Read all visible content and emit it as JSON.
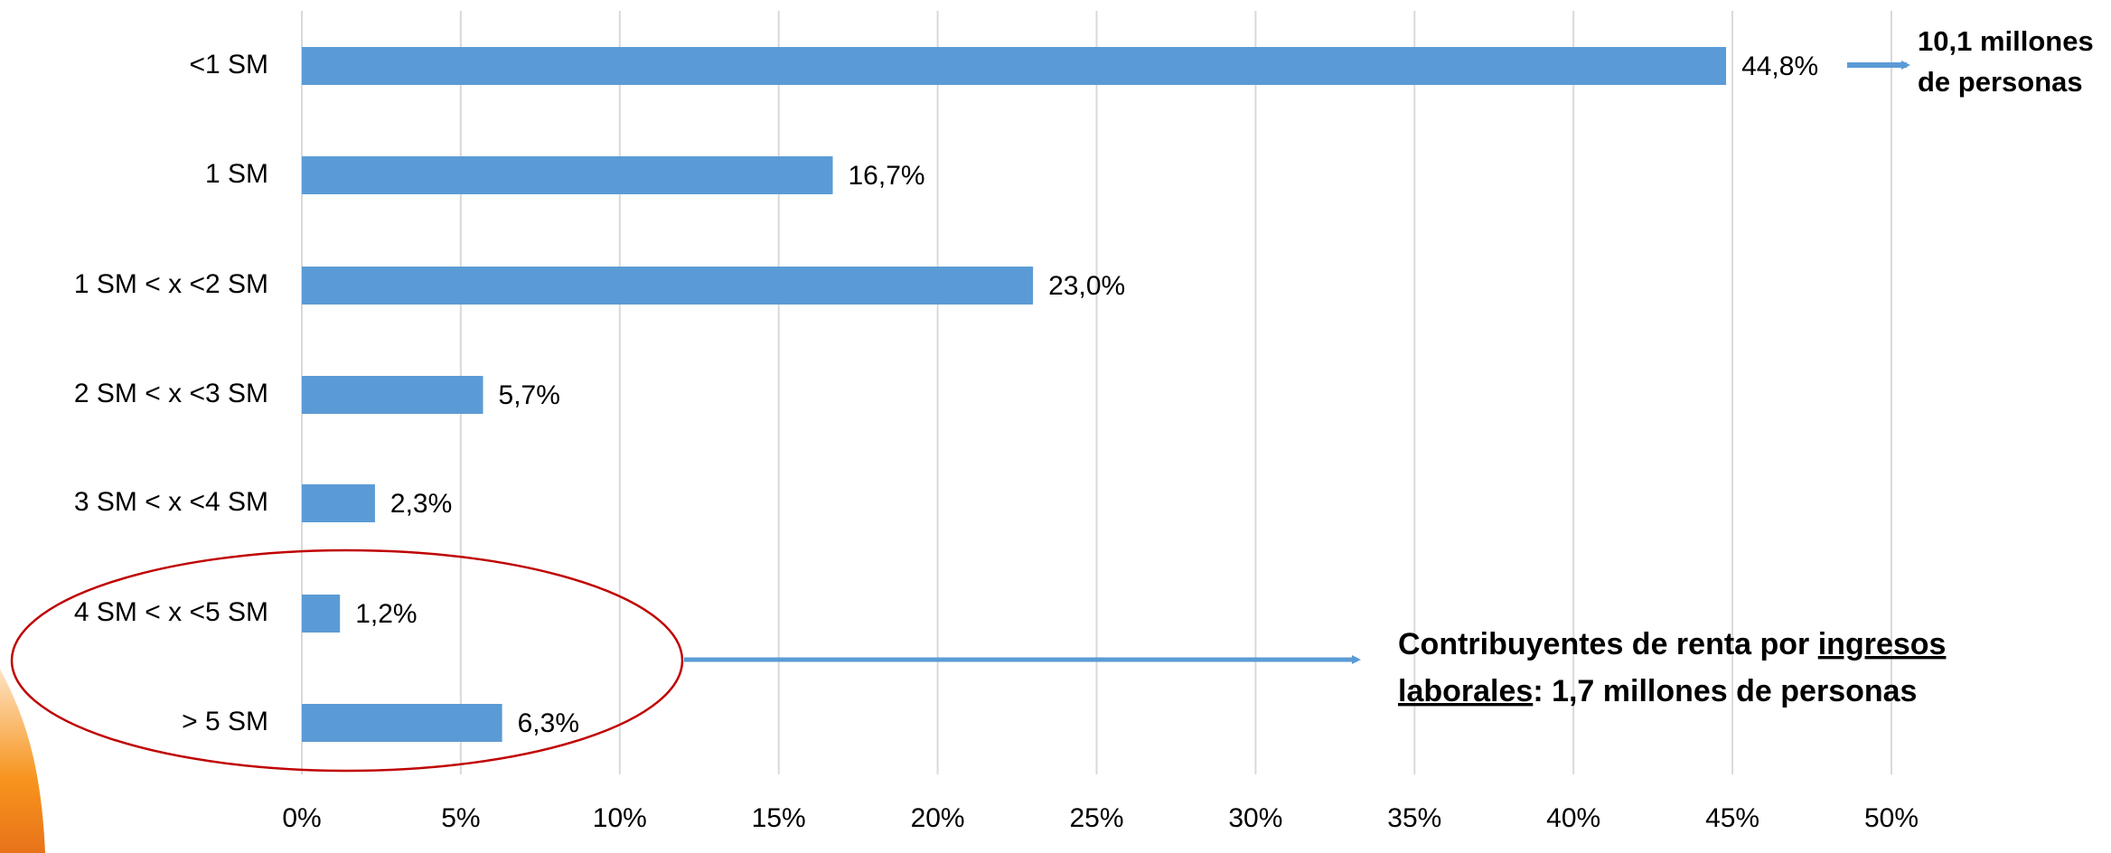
{
  "chart_data": {
    "type": "bar",
    "orientation": "horizontal",
    "categories": [
      "<1 SM",
      "1 SM",
      "1 SM < x <2 SM",
      "2 SM < x <3 SM",
      "3 SM < x <4 SM",
      "4 SM < x <5 SM",
      "> 5 SM"
    ],
    "values": [
      44.8,
      16.7,
      23.0,
      5.7,
      2.3,
      1.2,
      6.3
    ],
    "value_labels": [
      "44,8%",
      "16,7%",
      "23,0%",
      "5,7%",
      "2,3%",
      "1,2%",
      "6,3%"
    ],
    "color": "#5b9bd5",
    "xlim": [
      0,
      50
    ],
    "xticks": [
      {
        "value": 0,
        "label": "0%"
      },
      {
        "value": 5,
        "label": "5%"
      },
      {
        "value": 10,
        "label": "10%"
      },
      {
        "value": 15,
        "label": "15%"
      },
      {
        "value": 20,
        "label": "20%"
      },
      {
        "value": 25,
        "label": "25%"
      },
      {
        "value": 30,
        "label": "30%"
      },
      {
        "value": 35,
        "label": "35%"
      },
      {
        "value": 40,
        "label": "40%"
      },
      {
        "value": 45,
        "label": "45%"
      },
      {
        "value": 50,
        "label": "50%"
      }
    ],
    "grid": true,
    "annotation_top": [
      "10,1 millones",
      "de personas"
    ],
    "annotation_bottom": [
      [
        "Contribuyentes de renta por ",
        "ingresos"
      ],
      [
        "laborales",
        ": 1,7 millones de personas"
      ]
    ]
  }
}
